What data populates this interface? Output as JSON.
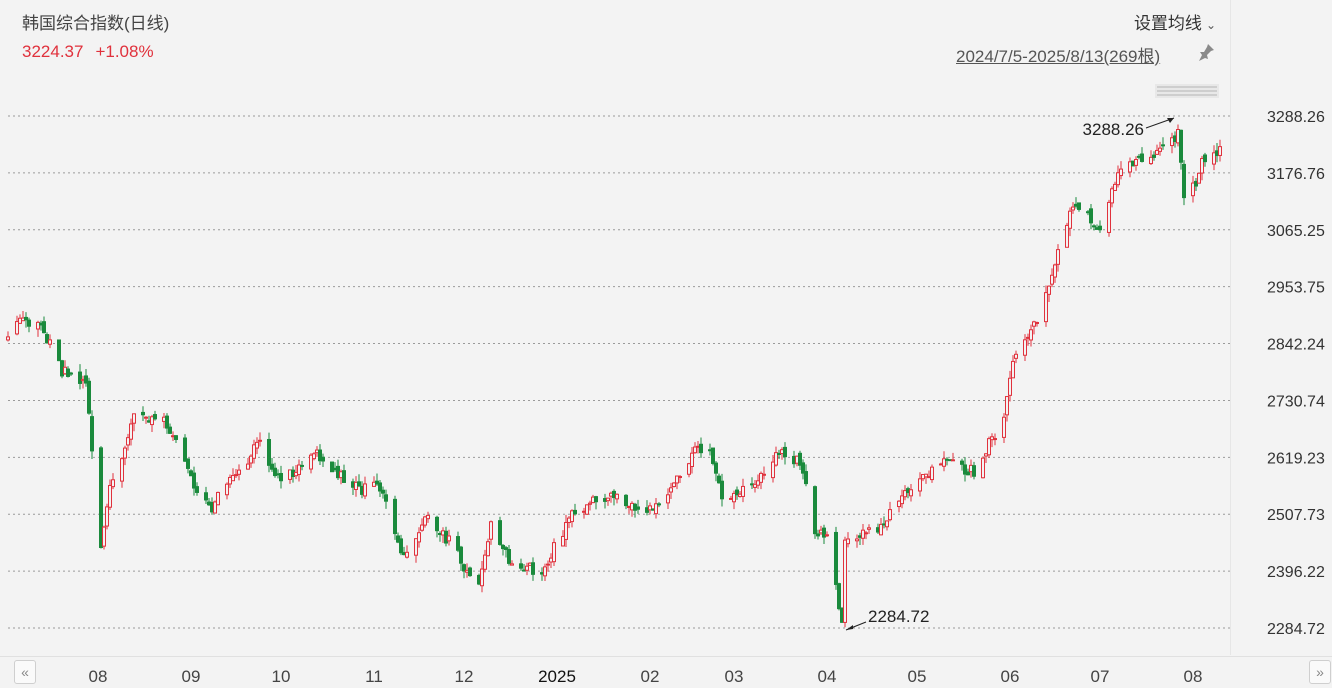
{
  "header": {
    "title": "韩国综合指数(日线)",
    "price": "3224.37",
    "change_pct": "+1.08%",
    "ma_button_label": "设置均线",
    "range_label": "2024/7/5-2025/8/13(269根)"
  },
  "colors": {
    "up": "#e0313c",
    "down": "#1a8a3c",
    "grid": "#9a9a9a",
    "annotation": "#222222"
  },
  "icons": {
    "pin": "pin-icon",
    "nav_left": "double-chevron-left-icon",
    "nav_right": "double-chevron-right-icon",
    "ma_dropdown": "chevron-down-icon"
  },
  "chart_data": {
    "type": "candlestick",
    "title": "韩国综合指数(日线)",
    "x_range": [
      "2024-07-05",
      "2025-08-13"
    ],
    "bar_count": 269,
    "y_ticks": [
      "3288.26",
      "3176.76",
      "3065.25",
      "2953.75",
      "2842.24",
      "2730.74",
      "2619.23",
      "2507.73",
      "2396.22",
      "2284.72"
    ],
    "ylim": [
      2284.72,
      3288.26
    ],
    "x_ticks": [
      "08",
      "09",
      "10",
      "11",
      "12",
      "2025",
      "02",
      "03",
      "04",
      "05",
      "06",
      "07",
      "08"
    ],
    "grid": "horizontal dashed",
    "annotations": [
      {
        "label": "3288.26",
        "type": "max",
        "date": "2025-07-30",
        "value": 3288.26
      },
      {
        "label": "2284.72",
        "type": "min",
        "date": "2025-04-09",
        "value": 2284.72
      }
    ],
    "close_path": [
      [
        "2024-07-05",
        2860
      ],
      [
        "2024-07-11",
        2890
      ],
      [
        "2024-07-17",
        2865
      ],
      [
        "2024-07-23",
        2790
      ],
      [
        "2024-07-31",
        2770
      ],
      [
        "2024-08-05",
        2441
      ],
      [
        "2024-08-08",
        2556
      ],
      [
        "2024-08-16",
        2697
      ],
      [
        "2024-08-26",
        2698
      ],
      [
        "2024-09-04",
        2580
      ],
      [
        "2024-09-10",
        2515
      ],
      [
        "2024-09-20",
        2593
      ],
      [
        "2024-09-27",
        2649
      ],
      [
        "2024-10-04",
        2569
      ],
      [
        "2024-10-15",
        2630
      ],
      [
        "2024-10-24",
        2582
      ],
      [
        "2024-10-31",
        2556
      ],
      [
        "2024-11-06",
        2564
      ],
      [
        "2024-11-14",
        2418
      ],
      [
        "2024-11-22",
        2501
      ],
      [
        "2024-11-29",
        2455
      ],
      [
        "2024-12-09",
        2360
      ],
      [
        "2024-12-13",
        2494
      ],
      [
        "2024-12-20",
        2404
      ],
      [
        "2024-12-30",
        2399
      ],
      [
        "2025-01-10",
        2515
      ],
      [
        "2025-01-22",
        2547
      ],
      [
        "2025-01-31",
        2517
      ],
      [
        "2025-02-07",
        2522
      ],
      [
        "2025-02-18",
        2626
      ],
      [
        "2025-02-24",
        2645
      ],
      [
        "2025-02-28",
        2532
      ],
      [
        "2025-03-10",
        2570
      ],
      [
        "2025-03-19",
        2628
      ],
      [
        "2025-03-26",
        2607
      ],
      [
        "2025-03-31",
        2481
      ],
      [
        "2025-04-04",
        2465
      ],
      [
        "2025-04-09",
        2293
      ],
      [
        "2025-04-10",
        2445
      ],
      [
        "2025-04-22",
        2486
      ],
      [
        "2025-05-02",
        2559
      ],
      [
        "2025-05-13",
        2608
      ],
      [
        "2025-05-23",
        2593
      ],
      [
        "2025-06-02",
        2698
      ],
      [
        "2025-06-05",
        2812
      ],
      [
        "2025-06-13",
        2894
      ],
      [
        "2025-06-20",
        3021
      ],
      [
        "2025-06-24",
        3104
      ],
      [
        "2025-07-01",
        3089
      ],
      [
        "2025-07-04",
        3054
      ],
      [
        "2025-07-10",
        3183
      ],
      [
        "2025-07-21",
        3210
      ],
      [
        "2025-07-30",
        3254
      ],
      [
        "2025-08-01",
        3119
      ],
      [
        "2025-08-04",
        3147
      ],
      [
        "2025-08-08",
        3210
      ],
      [
        "2025-08-13",
        3224.37
      ]
    ]
  }
}
